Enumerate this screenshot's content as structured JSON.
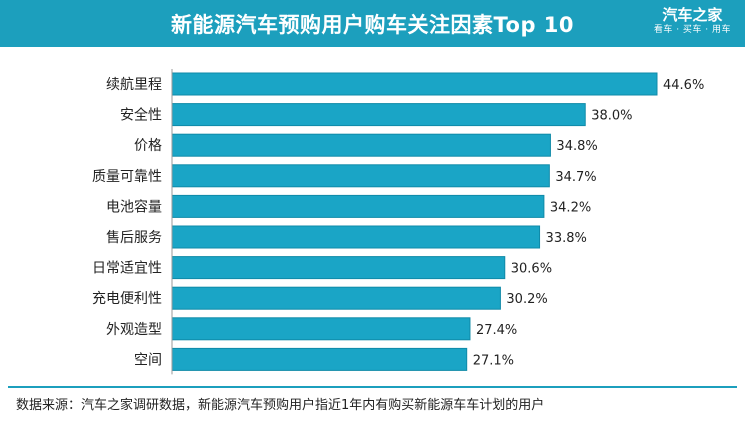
{
  "header": {
    "title": "新能源汽车预购用户购车关注因素Top 10",
    "logo_name": "汽车之家",
    "logo_slogan": "看车 · 买车 · 用车"
  },
  "footer": {
    "source": "数据来源：汽车之家调研数据，新能源汽车预购用户指近1年内有购买新能源车车计划的用户"
  },
  "colors": {
    "accent": "#1c9fbd",
    "bar": "#1aa5c6",
    "bar_border": "#0f8aa8"
  },
  "chart_data": {
    "type": "bar",
    "orientation": "horizontal",
    "title": "新能源汽车预购用户购车关注因素Top 10",
    "xlabel": "",
    "ylabel": "",
    "xlim": [
      0,
      46
    ],
    "grid": false,
    "categories": [
      "续航里程",
      "安全性",
      "价格",
      "质量可靠性",
      "电池容量",
      "售后服务",
      "日常适宜性",
      "充电便利性",
      "外观造型",
      "空间"
    ],
    "values": [
      44.6,
      38.0,
      34.8,
      34.7,
      34.2,
      33.8,
      30.6,
      30.2,
      27.4,
      27.1
    ],
    "value_labels": [
      "44.6%",
      "38.0%",
      "34.8%",
      "34.7%",
      "34.2%",
      "33.8%",
      "30.6%",
      "30.2%",
      "27.4%",
      "27.1%"
    ]
  }
}
